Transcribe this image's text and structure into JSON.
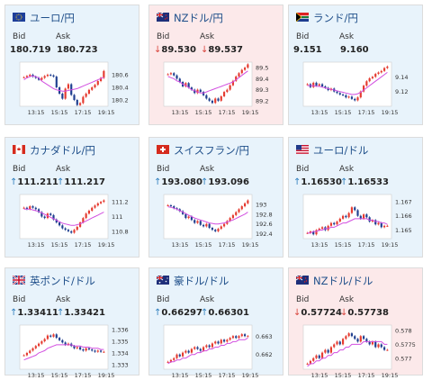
{
  "cards": [
    {
      "name": "ユーロ/円",
      "flag": "eu",
      "direction": "up",
      "bid": "180.719",
      "ask": "180.723",
      "bid_arrow": "",
      "ask_arrow": "",
      "chart_data": {
        "type": "candlestick",
        "x_ticks": [
          "13:15",
          "15:15",
          "17:15",
          "19:15"
        ],
        "y_ticks": [
          "180.6",
          "180.4",
          "180.2"
        ],
        "ylim": [
          180.1,
          180.8
        ],
        "close": [
          180.56,
          180.58,
          180.6,
          180.57,
          180.55,
          180.52,
          180.55,
          180.58,
          180.6,
          180.59,
          180.57,
          180.4,
          180.3,
          180.22,
          180.38,
          180.45,
          180.28,
          180.2,
          180.12,
          180.15,
          180.25,
          180.3,
          180.36,
          180.4,
          180.44,
          180.5,
          180.55,
          180.66
        ],
        "ma": [
          180.52,
          180.55,
          180.57,
          180.58,
          180.57,
          180.55,
          180.5,
          180.47,
          180.44,
          180.41,
          180.38,
          180.36,
          180.35,
          180.34,
          180.34,
          180.35,
          180.36,
          180.37,
          180.38,
          180.4,
          180.42,
          180.44,
          180.46,
          180.48,
          180.5,
          180.52,
          180.54,
          180.56
        ]
      }
    },
    {
      "name": "NZドル/円",
      "flag": "nz",
      "direction": "down",
      "bid": "89.530",
      "ask": "89.537",
      "bid_arrow": "↓",
      "ask_arrow": "↓",
      "chart_data": {
        "type": "candlestick",
        "x_ticks": [
          "13:15",
          "15:15",
          "17:15",
          "19:15"
        ],
        "y_ticks": [
          "89.5",
          "89.4",
          "89.3",
          "89.2"
        ],
        "ylim": [
          89.15,
          89.55
        ],
        "close": [
          89.44,
          89.45,
          89.43,
          89.4,
          89.37,
          89.33,
          89.36,
          89.32,
          89.3,
          89.27,
          89.3,
          89.28,
          89.25,
          89.22,
          89.2,
          89.18,
          89.22,
          89.2,
          89.24,
          89.28,
          89.3,
          89.34,
          89.38,
          89.42,
          89.45,
          89.48,
          89.5,
          89.53
        ],
        "ma": [
          89.42,
          89.41,
          89.4,
          89.38,
          89.37,
          89.35,
          89.34,
          89.32,
          89.3,
          89.29,
          89.28,
          89.27,
          89.27,
          89.28,
          89.29,
          89.3,
          89.31,
          89.32,
          89.33,
          89.34,
          89.35,
          89.36,
          89.37,
          89.39,
          89.41,
          89.43,
          89.45,
          89.47
        ]
      }
    },
    {
      "name": "ランド/円",
      "flag": "za",
      "direction": "up",
      "bid": "9.151",
      "ask": "9.160",
      "bid_arrow": "",
      "ask_arrow": "",
      "chart_data": {
        "type": "candlestick",
        "x_ticks": [
          "13:15",
          "15:15",
          "17:15",
          "19:15"
        ],
        "y_ticks": [
          "9.14",
          "9.12"
        ],
        "ylim": [
          9.1,
          9.16
        ],
        "close": [
          9.13,
          9.126,
          9.132,
          9.128,
          9.13,
          9.127,
          9.125,
          9.122,
          9.124,
          9.12,
          9.118,
          9.116,
          9.115,
          9.112,
          9.113,
          9.11,
          9.108,
          9.112,
          9.12,
          9.128,
          9.134,
          9.138,
          9.14,
          9.144,
          9.146,
          9.148,
          9.152,
          9.154
        ],
        "ma": [
          9.128,
          9.128,
          9.128,
          9.127,
          9.127,
          9.126,
          9.125,
          9.124,
          9.123,
          9.122,
          9.121,
          9.12,
          9.119,
          9.118,
          9.117,
          9.116,
          9.116,
          9.117,
          9.119,
          9.122,
          9.125,
          9.128,
          9.131,
          9.134,
          9.137,
          9.14,
          9.143,
          9.146
        ]
      }
    },
    {
      "name": "カナダドル/円",
      "flag": "ca",
      "direction": "up",
      "bid": "111.211",
      "ask": "111.217",
      "bid_arrow": "↑",
      "ask_arrow": "↑",
      "chart_data": {
        "type": "candlestick",
        "x_ticks": [
          "13:15",
          "15:15",
          "17:15",
          "19:15"
        ],
        "y_ticks": [
          "111.2",
          "111",
          "110.8"
        ],
        "ylim": [
          110.7,
          111.3
        ],
        "close": [
          111.12,
          111.1,
          111.14,
          111.12,
          111.1,
          111.06,
          111.0,
          110.98,
          111.04,
          111.02,
          110.96,
          110.92,
          110.88,
          110.84,
          110.82,
          110.8,
          110.78,
          110.82,
          110.86,
          110.92,
          110.98,
          111.04,
          111.08,
          111.12,
          111.15,
          111.18,
          111.2,
          111.22
        ],
        "ma": [
          111.1,
          111.1,
          111.1,
          111.09,
          111.08,
          111.07,
          111.05,
          111.03,
          111.01,
          110.99,
          110.97,
          110.95,
          110.93,
          110.91,
          110.9,
          110.89,
          110.88,
          110.88,
          110.89,
          110.9,
          110.92,
          110.94,
          110.96,
          110.98,
          111.0,
          111.02,
          111.04,
          111.06
        ]
      }
    },
    {
      "name": "スイスフラン/円",
      "flag": "ch",
      "direction": "up",
      "bid": "193.080",
      "ask": "193.096",
      "bid_arrow": "↑",
      "ask_arrow": "↑",
      "chart_data": {
        "type": "candlestick",
        "x_ticks": [
          "13:15",
          "15:15",
          "17:15",
          "19:15"
        ],
        "y_ticks": [
          "193",
          "192.8",
          "192.6",
          "192.4"
        ],
        "ylim": [
          192.3,
          193.2
        ],
        "close": [
          192.98,
          192.96,
          192.92,
          192.9,
          192.86,
          192.8,
          192.72,
          192.75,
          192.68,
          192.62,
          192.66,
          192.58,
          192.55,
          192.6,
          192.52,
          192.48,
          192.45,
          192.5,
          192.55,
          192.6,
          192.66,
          192.72,
          192.78,
          192.84,
          192.9,
          192.96,
          193.02,
          193.08
        ],
        "ma": [
          192.95,
          192.94,
          192.92,
          192.9,
          192.87,
          192.84,
          192.81,
          192.78,
          192.75,
          192.72,
          192.7,
          192.68,
          192.66,
          192.64,
          192.62,
          192.61,
          192.6,
          192.6,
          192.61,
          192.62,
          192.64,
          192.66,
          192.68,
          192.71,
          192.74,
          192.77,
          192.8,
          192.84
        ]
      }
    },
    {
      "name": "ユーロ/ドル",
      "flag": "us",
      "direction": "up",
      "bid": "1.16530",
      "ask": "1.16533",
      "bid_arrow": "↑",
      "ask_arrow": "↑",
      "chart_data": {
        "type": "candlestick",
        "x_ticks": [
          "13:15",
          "15:15",
          "17:15",
          "19:15"
        ],
        "y_ticks": [
          "1.167",
          "1.166",
          "1.165"
        ],
        "ylim": [
          1.1644,
          1.1675
        ],
        "close": [
          1.1648,
          1.1649,
          1.1647,
          1.165,
          1.1651,
          1.1652,
          1.165,
          1.1653,
          1.1655,
          1.1654,
          1.1656,
          1.1658,
          1.166,
          1.1659,
          1.1662,
          1.1666,
          1.1664,
          1.166,
          1.1658,
          1.1661,
          1.1659,
          1.1656,
          1.1657,
          1.1654,
          1.1655,
          1.1652,
          1.1653,
          1.1653
        ],
        "ma": [
          1.1648,
          1.1648,
          1.1649,
          1.1649,
          1.165,
          1.165,
          1.1651,
          1.1651,
          1.1652,
          1.1652,
          1.1653,
          1.1654,
          1.1655,
          1.1655,
          1.1656,
          1.1657,
          1.1658,
          1.1658,
          1.1658,
          1.1658,
          1.1658,
          1.1657,
          1.1657,
          1.1656,
          1.1656,
          1.1655,
          1.1655,
          1.1654
        ]
      }
    },
    {
      "name": "英ポンド/ドル",
      "flag": "gb",
      "direction": "up",
      "bid": "1.33411",
      "ask": "1.33421",
      "bid_arrow": "↑",
      "ask_arrow": "↑",
      "chart_data": {
        "type": "candlestick",
        "x_ticks": [
          "13:15",
          "15:15",
          "17:15",
          "19:15"
        ],
        "y_ticks": [
          "1.336",
          "1.335",
          "1.334",
          "1.333"
        ],
        "ylim": [
          1.3326,
          1.3364
        ],
        "close": [
          1.3338,
          1.334,
          1.3342,
          1.3344,
          1.3346,
          1.3348,
          1.335,
          1.3352,
          1.3355,
          1.3354,
          1.3356,
          1.3353,
          1.3351,
          1.3349,
          1.3347,
          1.3348,
          1.3346,
          1.3344,
          1.3345,
          1.3343,
          1.3342,
          1.3344,
          1.3343,
          1.3342,
          1.3341,
          1.3342,
          1.3341,
          1.3341
        ],
        "ma": [
          1.3334,
          1.3335,
          1.3336,
          1.3337,
          1.3338,
          1.334,
          1.3341,
          1.3342,
          1.3344,
          1.3345,
          1.3346,
          1.3347,
          1.3347,
          1.3347,
          1.3347,
          1.3347,
          1.3347,
          1.3346,
          1.3346,
          1.3346,
          1.3345,
          1.3345,
          1.3345,
          1.3344,
          1.3344,
          1.3344,
          1.3343,
          1.3343
        ]
      }
    },
    {
      "name": "豪ドル/ドル",
      "flag": "au",
      "direction": "up",
      "bid": "0.66297",
      "ask": "0.66301",
      "bid_arrow": "↑",
      "ask_arrow": "↑",
      "chart_data": {
        "type": "candlestick",
        "x_ticks": [
          "13:15",
          "15:15",
          "17:15",
          "19:15"
        ],
        "y_ticks": [
          "0.663",
          "0.662"
        ],
        "ylim": [
          0.6612,
          0.6636
        ],
        "close": [
          0.6616,
          0.6617,
          0.6618,
          0.662,
          0.6619,
          0.6621,
          0.6622,
          0.6621,
          0.6623,
          0.6624,
          0.6623,
          0.6622,
          0.6624,
          0.6625,
          0.6624,
          0.6626,
          0.6627,
          0.6626,
          0.6628,
          0.6627,
          0.6628,
          0.6629,
          0.663,
          0.6629,
          0.663,
          0.6631,
          0.663,
          0.663
        ],
        "ma": [
          0.6615,
          0.6616,
          0.6616,
          0.6617,
          0.6617,
          0.6618,
          0.6618,
          0.6619,
          0.662,
          0.662,
          0.6621,
          0.6621,
          0.6622,
          0.6622,
          0.6623,
          0.6623,
          0.6624,
          0.6624,
          0.6625,
          0.6625,
          0.6626,
          0.6626,
          0.6627,
          0.6627,
          0.6628,
          0.6628,
          0.6628,
          0.6629
        ]
      }
    },
    {
      "name": "NZドル/ドル",
      "flag": "nz",
      "direction": "down",
      "bid": "0.57724",
      "ask": "0.57738",
      "bid_arrow": "↓",
      "ask_arrow": "↓",
      "chart_data": {
        "type": "candlestick",
        "x_ticks": [
          "13:15",
          "15:15",
          "17:15",
          "19:15"
        ],
        "y_ticks": [
          "0.578",
          "0.5775",
          "0.577"
        ],
        "ylim": [
          0.5766,
          0.5782
        ],
        "close": [
          0.5768,
          0.5769,
          0.577,
          0.5771,
          0.577,
          0.5772,
          0.5773,
          0.5772,
          0.5774,
          0.5775,
          0.5776,
          0.5775,
          0.5777,
          0.5778,
          0.5779,
          0.5778,
          0.5777,
          0.5776,
          0.5778,
          0.5777,
          0.5776,
          0.5775,
          0.5776,
          0.5774,
          0.5775,
          0.5774,
          0.5773,
          0.5773
        ],
        "ma": [
          0.5767,
          0.5768,
          0.5768,
          0.5769,
          0.5769,
          0.577,
          0.577,
          0.5771,
          0.5771,
          0.5772,
          0.5772,
          0.5773,
          0.5773,
          0.5774,
          0.5774,
          0.5775,
          0.5775,
          0.5775,
          0.5775,
          0.5776,
          0.5776,
          0.5776,
          0.5776,
          0.5776,
          0.5776,
          0.5776,
          0.5775,
          0.5775
        ]
      }
    }
  ]
}
